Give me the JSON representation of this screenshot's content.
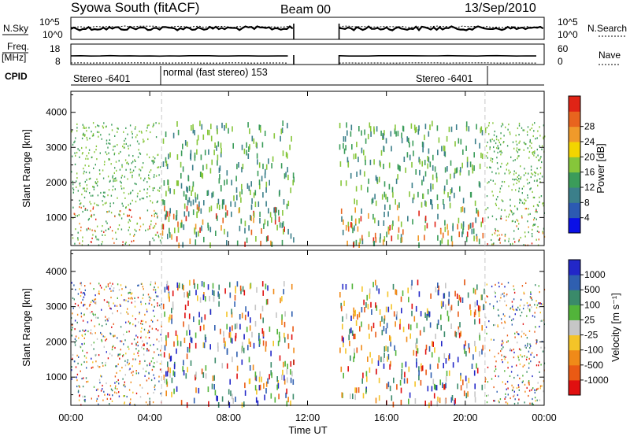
{
  "header": {
    "title": "Syowa South (fitACF)",
    "beam": "Beam 00",
    "date": "13/Sep/2010"
  },
  "top_panels": {
    "nsky_label": "N.Sky",
    "nsky_ticks": [
      "10^5",
      "10^0"
    ],
    "nsearch_label": "N.Search",
    "nsearch_ticks": [
      "10^5",
      "10^0"
    ],
    "freq_label": "Freq.",
    "freq_unit": "[MHz]",
    "freq_ticks": [
      "18",
      "8"
    ],
    "nave_label": "Nave",
    "nave_ticks": [
      "60",
      "0"
    ],
    "cpid_label": "CPID",
    "cpid_segments": [
      "Stereo -6401",
      "normal (fast stereo) 153",
      "Stereo -6401"
    ]
  },
  "chart_data": [
    {
      "type": "heatmap",
      "name": "power-panel",
      "ylabel": "Slant Range [km]",
      "y_ticks": [
        "1000",
        "2000",
        "3000",
        "4000"
      ],
      "y_tick_values": [
        1000,
        2000,
        3000,
        4000
      ],
      "ylim": [
        200,
        4600
      ],
      "colorbar_label": "Power [dB]",
      "colorbar_ticks": [
        "4",
        "8",
        "12",
        "16",
        "20",
        "24",
        "28"
      ],
      "colorbar_colors": [
        "#0a10e6",
        "#2c5ab2",
        "#3b7f8a",
        "#3b9c5a",
        "#86c63a",
        "#f3d500",
        "#f09a2a",
        "#e8641e",
        "#e02416"
      ]
    },
    {
      "type": "heatmap",
      "name": "velocity-panel",
      "ylabel": "Slant Range [km]",
      "y_ticks": [
        "1000",
        "2000",
        "3000",
        "4000"
      ],
      "y_tick_values": [
        1000,
        2000,
        3000,
        4000
      ],
      "ylim": [
        200,
        4600
      ],
      "colorbar_label": "Velocity [m s⁻¹]",
      "colorbar_ticks": [
        "1000",
        "500",
        "100",
        "25",
        "-25",
        "-100",
        "-500",
        "-1000"
      ],
      "colorbar_colors": [
        "#2227c8",
        "#2f5fb0",
        "#3a8a6a",
        "#52b43a",
        "#c6c6c6",
        "#f4c428",
        "#f08a18",
        "#ea5a14",
        "#e01010"
      ]
    }
  ],
  "x_axis": {
    "label": "Time UT",
    "ticks": [
      "00:00",
      "04:00",
      "08:00",
      "12:00",
      "16:00",
      "20:00",
      "00:00"
    ],
    "tick_hours": [
      0,
      4,
      8,
      12,
      16,
      20,
      24
    ],
    "range_hours": [
      0,
      24
    ],
    "data_gap_hours": [
      11.3,
      13.6
    ],
    "mode_change_hours": [
      4.6,
      21.0
    ]
  }
}
